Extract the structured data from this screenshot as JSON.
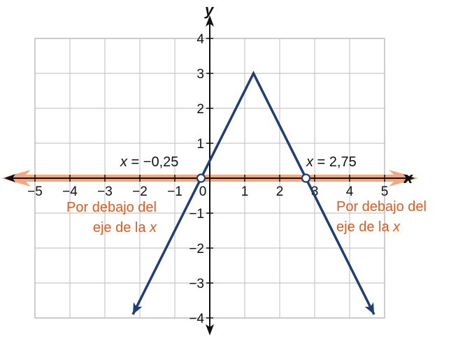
{
  "chart_data": {
    "type": "line",
    "xlabel": "x",
    "ylabel": "y",
    "xlim": [
      -5,
      5
    ],
    "ylim": [
      -4,
      4
    ],
    "grid": true,
    "x_ticks": [
      {
        "value": -5,
        "label": "−5"
      },
      {
        "value": -4,
        "label": "−4"
      },
      {
        "value": -3,
        "label": "−3"
      },
      {
        "value": -2,
        "label": "−2"
      },
      {
        "value": -1,
        "label": "−1"
      },
      {
        "value": 0,
        "label": "0"
      },
      {
        "value": 1,
        "label": "1"
      },
      {
        "value": 2,
        "label": "2"
      },
      {
        "value": 3,
        "label": "3"
      },
      {
        "value": 4,
        "label": "4"
      },
      {
        "value": 5,
        "label": "5"
      }
    ],
    "y_ticks": [
      {
        "value": 4,
        "label": "4"
      },
      {
        "value": 3,
        "label": "3"
      },
      {
        "value": 2,
        "label": "2"
      },
      {
        "value": 1,
        "label": "1"
      },
      {
        "value": -1,
        "label": "−1"
      },
      {
        "value": -2,
        "label": "−2"
      },
      {
        "value": -3,
        "label": "−3"
      },
      {
        "value": -4,
        "label": "−4"
      }
    ],
    "series": [
      {
        "color": "#1f3e73",
        "points": [
          [
            -2.2,
            -3.9
          ],
          [
            1.25,
            3
          ],
          [
            4.7,
            -3.9
          ]
        ],
        "arrows": "both"
      }
    ],
    "x_axis_highlight": {
      "color": "#f3a77f",
      "from": -6,
      "to": 6
    },
    "open_points": [
      {
        "x": -0.25,
        "y": 0,
        "label_prefix": "x",
        "label_value": " = −0,25"
      },
      {
        "x": 2.75,
        "y": 0,
        "label_prefix": "x",
        "label_value": " = 2,75"
      }
    ],
    "region_labels": [
      {
        "line1": "Por debajo del",
        "line2": "eje de la ",
        "var": "x",
        "color": "#e05a1b"
      },
      {
        "line1": "Por debajo del",
        "line2": "eje de la ",
        "var": "x",
        "color": "#e05a1b"
      }
    ]
  }
}
